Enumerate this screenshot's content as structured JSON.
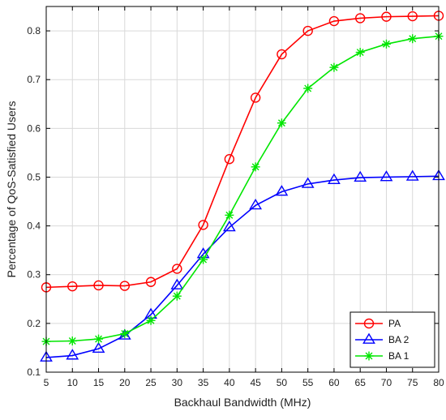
{
  "chart_data": {
    "type": "line",
    "title": "",
    "xlabel": "Backhaul Bandwidth (MHz)",
    "ylabel": "Percentage of QoS-Satisfied Users",
    "x": [
      5,
      10,
      15,
      20,
      25,
      30,
      35,
      40,
      45,
      50,
      55,
      60,
      65,
      70,
      75,
      80
    ],
    "xlim": [
      5,
      80
    ],
    "ylim": [
      0.1,
      0.85
    ],
    "xticks": [
      "5",
      "10",
      "15",
      "20",
      "25",
      "30",
      "35",
      "40",
      "45",
      "50",
      "55",
      "60",
      "65",
      "70",
      "75",
      "80"
    ],
    "yticks": [
      "0.1",
      "0.2",
      "0.3",
      "0.4",
      "0.5",
      "0.6",
      "0.7",
      "0.8"
    ],
    "grid": true,
    "legend_position": "bottom-right",
    "series": [
      {
        "name": "PA",
        "color": "#ff0000",
        "marker": "circle",
        "values": [
          0.274,
          0.276,
          0.278,
          0.277,
          0.285,
          0.312,
          0.402,
          0.537,
          0.663,
          0.752,
          0.8,
          0.82,
          0.826,
          0.829,
          0.83,
          0.831
        ]
      },
      {
        "name": "BA 2",
        "color": "#0000ff",
        "marker": "triangle",
        "values": [
          0.13,
          0.134,
          0.148,
          0.175,
          0.218,
          0.278,
          0.342,
          0.397,
          0.442,
          0.47,
          0.486,
          0.494,
          0.499,
          0.5,
          0.501,
          0.502
        ]
      },
      {
        "name": "BA 1",
        "color": "#00e600",
        "marker": "star",
        "values": [
          0.163,
          0.164,
          0.168,
          0.179,
          0.206,
          0.256,
          0.331,
          0.422,
          0.521,
          0.611,
          0.682,
          0.725,
          0.756,
          0.773,
          0.784,
          0.789
        ]
      }
    ]
  }
}
